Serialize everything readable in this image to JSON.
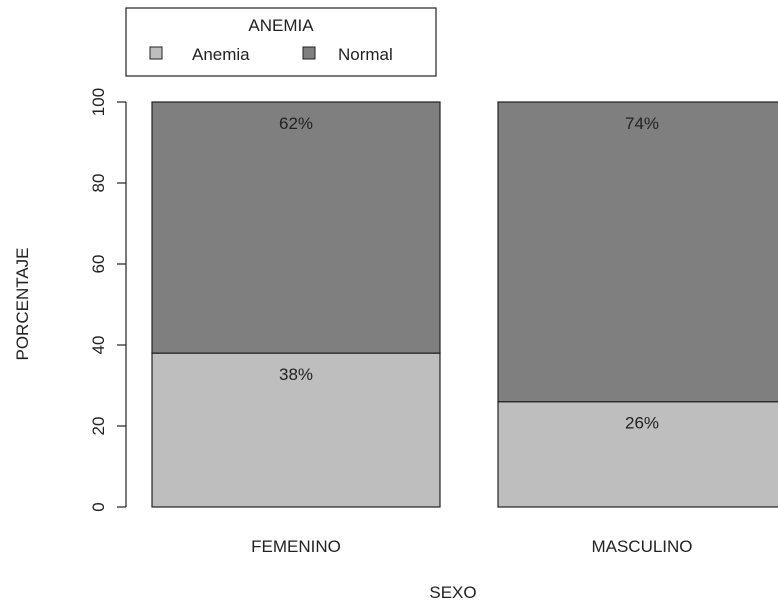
{
  "chart_data": {
    "type": "bar",
    "stacked": true,
    "categories": [
      "FEMENINO",
      "MASCULINO"
    ],
    "series": [
      {
        "name": "Anemia",
        "values": [
          38,
          26
        ],
        "labels": [
          "38%",
          "26%"
        ],
        "color": "#bebebe"
      },
      {
        "name": "Normal",
        "values": [
          62,
          74
        ],
        "labels": [
          "62%",
          "74%"
        ],
        "color": "#7f7f7f"
      }
    ],
    "title": "",
    "xlabel": "SEXO",
    "ylabel": "PORCENTAJE",
    "ylim": [
      0,
      100
    ],
    "yticks": [
      "0",
      "20",
      "40",
      "60",
      "80",
      "100"
    ],
    "legend": {
      "title": "ANEMIA",
      "position": "top-left",
      "items": [
        "Anemia",
        "Normal"
      ]
    },
    "grid": false
  }
}
